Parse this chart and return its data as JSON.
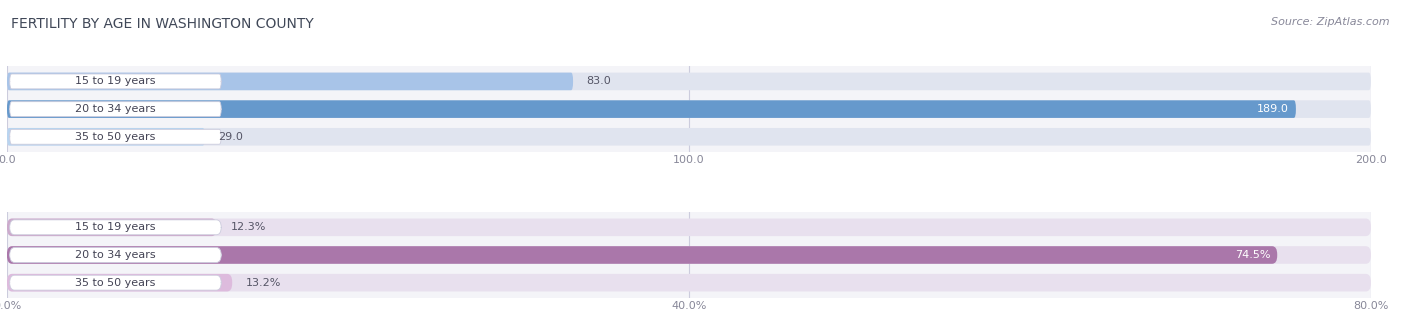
{
  "title": "FERTILITY BY AGE IN WASHINGTON COUNTY",
  "source": "Source: ZipAtlas.com",
  "top_chart": {
    "categories": [
      "15 to 19 years",
      "20 to 34 years",
      "35 to 50 years"
    ],
    "values": [
      83.0,
      189.0,
      29.0
    ],
    "xlim": [
      0,
      200
    ],
    "xticks": [
      0.0,
      100.0,
      200.0
    ],
    "xtick_labels": [
      "0.0",
      "100.0",
      "200.0"
    ],
    "bar_colors": [
      "#a8c4e8",
      "#6699cc",
      "#b8d4f0"
    ],
    "bar_bg_color": "#e0e4ef",
    "value_inside_color": "#ffffff",
    "value_outside_color": "#555566"
  },
  "bottom_chart": {
    "categories": [
      "15 to 19 years",
      "20 to 34 years",
      "35 to 50 years"
    ],
    "values": [
      12.3,
      74.5,
      13.2
    ],
    "xlim": [
      0,
      80
    ],
    "xticks": [
      0.0,
      40.0,
      80.0
    ],
    "xtick_labels": [
      "0.0%",
      "40.0%",
      "80.0%"
    ],
    "bar_colors": [
      "#ccaacc",
      "#aa77aa",
      "#ddbbdd"
    ],
    "bar_bg_color": "#e8e0ee",
    "value_inside_color": "#ffffff",
    "value_outside_color": "#555566"
  },
  "title_color": "#404858",
  "tick_color": "#888899",
  "grid_color": "#ccccdd",
  "panel_bg": "#f4f4f8",
  "label_pill_bg": "#ffffff",
  "label_pill_edge": "#ccccdd",
  "label_text_color": "#444455",
  "title_fontsize": 10,
  "source_fontsize": 8,
  "label_fontsize": 8,
  "tick_fontsize": 8,
  "value_fontsize": 8
}
